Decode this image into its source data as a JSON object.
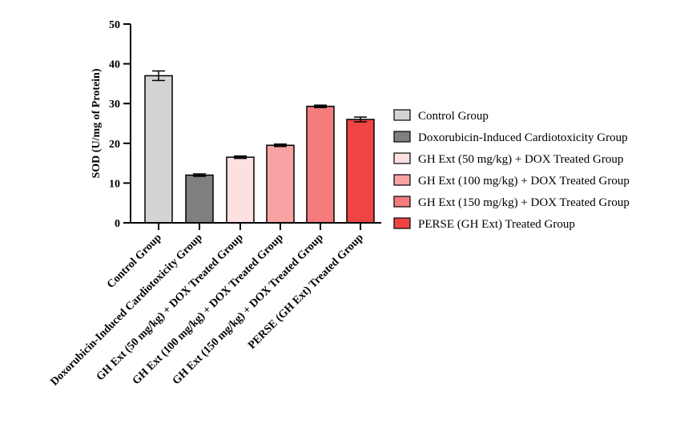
{
  "chart_data": {
    "type": "bar",
    "title": "",
    "xlabel": "",
    "ylabel": "SOD (U/mg of Protein)",
    "ylim": [
      0,
      50
    ],
    "yticks": [
      0,
      10,
      20,
      30,
      40,
      50
    ],
    "grid": false,
    "legend_position": "right",
    "categories": [
      "Control Group",
      "Doxorubicin-Induced Cardiotoxicity Group",
      "GH Ext (50 mg/kg) + DOX Treated Group",
      "GH Ext (100 mg/kg) + DOX Treated Group",
      "GH Ext (150 mg/kg) + DOX Treated Group",
      "PERSE (GH Ext) Treated Group"
    ],
    "values": [
      37.0,
      12.0,
      16.5,
      19.5,
      29.3,
      26.0
    ],
    "errors": [
      1.2,
      0.3,
      0.3,
      0.3,
      0.3,
      0.6
    ],
    "colors": [
      "#d3d3d3",
      "#808080",
      "#fde0e0",
      "#f7a3a3",
      "#f47c7c",
      "#ef4444"
    ],
    "legend": [
      "Control Group",
      "Doxorubicin-Induced Cardiotoxicity Group",
      "GH Ext (50 mg/kg) + DOX Treated Group",
      "GH Ext (100 mg/kg) + DOX Treated Group",
      "GH Ext (150 mg/kg) + DOX Treated Group",
      "PERSE (GH Ext) Treated Group"
    ]
  }
}
